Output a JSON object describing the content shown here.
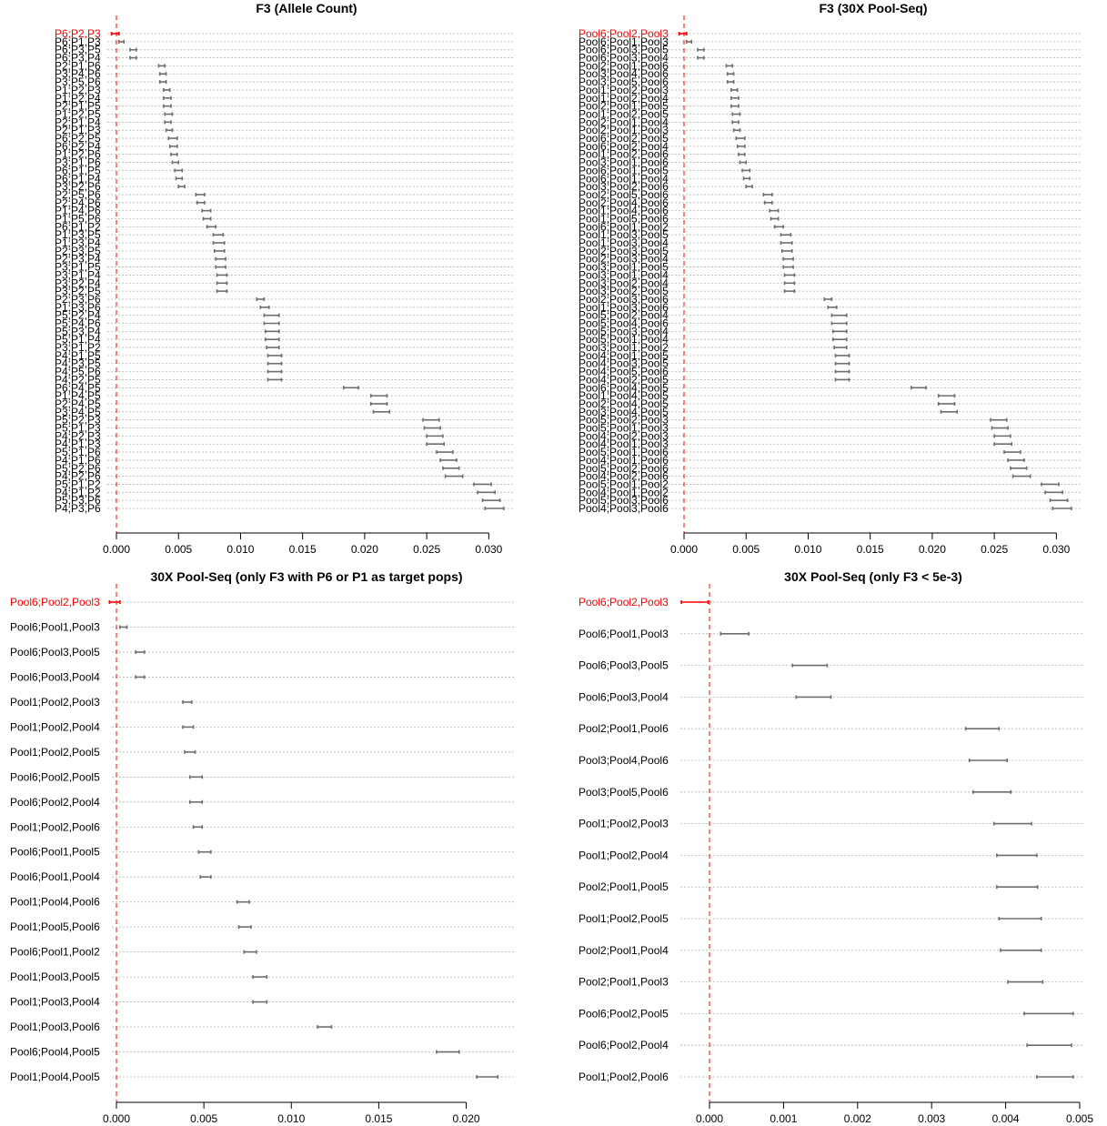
{
  "colors": {
    "highlight": "#ff0000",
    "bar": "#6e6e6e",
    "grid": "#b4b4b4"
  },
  "chart_data": [
    {
      "type": "range",
      "title": "F3 (Allele Count)",
      "xlim": [
        0,
        0.031
      ],
      "xticks": [
        "0.000",
        "0.005",
        "0.010",
        "0.015",
        "0.020",
        "0.025",
        "0.030"
      ],
      "grid": true,
      "highlight_index": 0,
      "rows": [
        {
          "label": "P6;P2,P3",
          "lo": -0.0004,
          "hi": 0.0002
        },
        {
          "label": "P6;P1,P3",
          "lo": 0.0002,
          "hi": 0.0006
        },
        {
          "label": "P6;P3,P5",
          "lo": 0.0011,
          "hi": 0.0016
        },
        {
          "label": "P6;P3,P4",
          "lo": 0.0011,
          "hi": 0.0016
        },
        {
          "label": "P2;P1,P6",
          "lo": 0.0034,
          "hi": 0.0039
        },
        {
          "label": "P3;P4,P6",
          "lo": 0.0035,
          "hi": 0.004
        },
        {
          "label": "P3;P5,P6",
          "lo": 0.0035,
          "hi": 0.004
        },
        {
          "label": "P1;P2,P3",
          "lo": 0.0038,
          "hi": 0.0043
        },
        {
          "label": "P1;P2,P4",
          "lo": 0.0038,
          "hi": 0.0044
        },
        {
          "label": "P2;P1,P5",
          "lo": 0.0038,
          "hi": 0.0044
        },
        {
          "label": "P1;P2,P5",
          "lo": 0.0039,
          "hi": 0.0045
        },
        {
          "label": "P2;P1,P4",
          "lo": 0.0039,
          "hi": 0.0044
        },
        {
          "label": "P2;P1,P3",
          "lo": 0.004,
          "hi": 0.0045
        },
        {
          "label": "P6;P2,P5",
          "lo": 0.0042,
          "hi": 0.0049
        },
        {
          "label": "P6;P2,P4",
          "lo": 0.0043,
          "hi": 0.0049
        },
        {
          "label": "P1;P2,P6",
          "lo": 0.0044,
          "hi": 0.0049
        },
        {
          "label": "P3;P1,P6",
          "lo": 0.0045,
          "hi": 0.005
        },
        {
          "label": "P6;P1,P5",
          "lo": 0.0047,
          "hi": 0.0053
        },
        {
          "label": "P6;P1,P4",
          "lo": 0.0048,
          "hi": 0.0053
        },
        {
          "label": "P3;P2,P6",
          "lo": 0.005,
          "hi": 0.0055
        },
        {
          "label": "P2;P5,P6",
          "lo": 0.0064,
          "hi": 0.0071
        },
        {
          "label": "P2;P4,P6",
          "lo": 0.0065,
          "hi": 0.0071
        },
        {
          "label": "P1;P4,P6",
          "lo": 0.0069,
          "hi": 0.0076
        },
        {
          "label": "P1;P5,P6",
          "lo": 0.007,
          "hi": 0.0076
        },
        {
          "label": "P6;P1,P2",
          "lo": 0.0073,
          "hi": 0.008
        },
        {
          "label": "P1;P3,P5",
          "lo": 0.0078,
          "hi": 0.0086
        },
        {
          "label": "P1;P3,P4",
          "lo": 0.0078,
          "hi": 0.0087
        },
        {
          "label": "P2;P3,P5",
          "lo": 0.0079,
          "hi": 0.0087
        },
        {
          "label": "P2;P3,P4",
          "lo": 0.008,
          "hi": 0.0088
        },
        {
          "label": "P3;P1,P5",
          "lo": 0.008,
          "hi": 0.0088
        },
        {
          "label": "P3;P1,P4",
          "lo": 0.0081,
          "hi": 0.0089
        },
        {
          "label": "P3;P2,P4",
          "lo": 0.0081,
          "hi": 0.0089
        },
        {
          "label": "P3;P2,P5",
          "lo": 0.0081,
          "hi": 0.0089
        },
        {
          "label": "P2;P3,P6",
          "lo": 0.0113,
          "hi": 0.0119
        },
        {
          "label": "P1;P3,P6",
          "lo": 0.0116,
          "hi": 0.0123
        },
        {
          "label": "P5;P2,P4",
          "lo": 0.0119,
          "hi": 0.0131
        },
        {
          "label": "P5;P4,P6",
          "lo": 0.0119,
          "hi": 0.0131
        },
        {
          "label": "P5;P3,P4",
          "lo": 0.012,
          "hi": 0.0131
        },
        {
          "label": "P5;P1,P4",
          "lo": 0.012,
          "hi": 0.0131
        },
        {
          "label": "P3;P1,P2",
          "lo": 0.0121,
          "hi": 0.0131
        },
        {
          "label": "P4;P1,P5",
          "lo": 0.0122,
          "hi": 0.0133
        },
        {
          "label": "P4;P3,P5",
          "lo": 0.0122,
          "hi": 0.0133
        },
        {
          "label": "P4;P5,P6",
          "lo": 0.0122,
          "hi": 0.0133
        },
        {
          "label": "P4;P2,P5",
          "lo": 0.0122,
          "hi": 0.0133
        },
        {
          "label": "P6;P4,P5",
          "lo": 0.0183,
          "hi": 0.0195
        },
        {
          "label": "P1;P4,P5",
          "lo": 0.0205,
          "hi": 0.0218
        },
        {
          "label": "P2;P4,P5",
          "lo": 0.0205,
          "hi": 0.0218
        },
        {
          "label": "P3;P4,P5",
          "lo": 0.0207,
          "hi": 0.022
        },
        {
          "label": "P5;P2,P3",
          "lo": 0.0247,
          "hi": 0.026
        },
        {
          "label": "P5;P1,P3",
          "lo": 0.0248,
          "hi": 0.0261
        },
        {
          "label": "P4;P2,P3",
          "lo": 0.025,
          "hi": 0.0263
        },
        {
          "label": "P4;P1,P3",
          "lo": 0.025,
          "hi": 0.0264
        },
        {
          "label": "P5;P1,P6",
          "lo": 0.0258,
          "hi": 0.0271
        },
        {
          "label": "P4;P1,P6",
          "lo": 0.0261,
          "hi": 0.0274
        },
        {
          "label": "P5;P2,P6",
          "lo": 0.0263,
          "hi": 0.0276
        },
        {
          "label": "P4;P2,P6",
          "lo": 0.0265,
          "hi": 0.0279
        },
        {
          "label": "P5;P1,P2",
          "lo": 0.0288,
          "hi": 0.0302
        },
        {
          "label": "P4;P1,P2",
          "lo": 0.0291,
          "hi": 0.0305
        },
        {
          "label": "P5;P3,P6",
          "lo": 0.0295,
          "hi": 0.0309
        },
        {
          "label": "P4;P3,P6",
          "lo": 0.0297,
          "hi": 0.0312
        }
      ]
    },
    {
      "type": "range",
      "title": "F3 (30X Pool-Seq)",
      "xlim": [
        0,
        0.031
      ],
      "xticks": [
        "0.000",
        "0.005",
        "0.010",
        "0.015",
        "0.020",
        "0.025",
        "0.030"
      ],
      "grid": true,
      "highlight_index": 0,
      "rows": [
        {
          "label": "Pool6;Pool2,Pool3",
          "lo": -0.0004,
          "hi": 0.0002
        },
        {
          "label": "Pool6;Pool1,Pool3",
          "lo": 0.0002,
          "hi": 0.0006
        },
        {
          "label": "Pool6;Pool3,Pool5",
          "lo": 0.0011,
          "hi": 0.0016
        },
        {
          "label": "Pool6;Pool3,Pool4",
          "lo": 0.0011,
          "hi": 0.0016
        },
        {
          "label": "Pool2;Pool1,Pool6",
          "lo": 0.0034,
          "hi": 0.0039
        },
        {
          "label": "Pool3;Pool4,Pool6",
          "lo": 0.0035,
          "hi": 0.004
        },
        {
          "label": "Pool3;Pool5,Pool6",
          "lo": 0.0035,
          "hi": 0.004
        },
        {
          "label": "Pool1;Pool2,Pool3",
          "lo": 0.0038,
          "hi": 0.0043
        },
        {
          "label": "Pool1;Pool2,Pool4",
          "lo": 0.0038,
          "hi": 0.0044
        },
        {
          "label": "Pool2;Pool1,Pool5",
          "lo": 0.0038,
          "hi": 0.0044
        },
        {
          "label": "Pool1;Pool2,Pool5",
          "lo": 0.0039,
          "hi": 0.0045
        },
        {
          "label": "Pool2;Pool1,Pool4",
          "lo": 0.0039,
          "hi": 0.0044
        },
        {
          "label": "Pool2;Pool1,Pool3",
          "lo": 0.004,
          "hi": 0.0045
        },
        {
          "label": "Pool6;Pool2,Pool5",
          "lo": 0.0042,
          "hi": 0.0049
        },
        {
          "label": "Pool6;Pool2,Pool4",
          "lo": 0.0043,
          "hi": 0.0049
        },
        {
          "label": "Pool1;Pool2,Pool6",
          "lo": 0.0044,
          "hi": 0.0049
        },
        {
          "label": "Pool3;Pool1,Pool6",
          "lo": 0.0045,
          "hi": 0.005
        },
        {
          "label": "Pool6;Pool1,Pool5",
          "lo": 0.0047,
          "hi": 0.0053
        },
        {
          "label": "Pool6;Pool1,Pool4",
          "lo": 0.0048,
          "hi": 0.0053
        },
        {
          "label": "Pool3;Pool2,Pool6",
          "lo": 0.005,
          "hi": 0.0055
        },
        {
          "label": "Pool2;Pool5,Pool6",
          "lo": 0.0064,
          "hi": 0.0071
        },
        {
          "label": "Pool2;Pool4,Pool6",
          "lo": 0.0065,
          "hi": 0.0071
        },
        {
          "label": "Pool1;Pool4,Pool6",
          "lo": 0.0069,
          "hi": 0.0076
        },
        {
          "label": "Pool1;Pool5,Pool6",
          "lo": 0.007,
          "hi": 0.0076
        },
        {
          "label": "Pool6;Pool1,Pool2",
          "lo": 0.0073,
          "hi": 0.008
        },
        {
          "label": "Pool1;Pool3,Pool5",
          "lo": 0.0078,
          "hi": 0.0086
        },
        {
          "label": "Pool1;Pool3,Pool4",
          "lo": 0.0078,
          "hi": 0.0087
        },
        {
          "label": "Pool2;Pool3,Pool5",
          "lo": 0.0079,
          "hi": 0.0087
        },
        {
          "label": "Pool2;Pool3,Pool4",
          "lo": 0.008,
          "hi": 0.0088
        },
        {
          "label": "Pool3;Pool1,Pool5",
          "lo": 0.008,
          "hi": 0.0088
        },
        {
          "label": "Pool3;Pool1,Pool4",
          "lo": 0.0081,
          "hi": 0.0089
        },
        {
          "label": "Pool3;Pool2,Pool4",
          "lo": 0.0081,
          "hi": 0.0089
        },
        {
          "label": "Pool3;Pool2,Pool5",
          "lo": 0.0081,
          "hi": 0.0089
        },
        {
          "label": "Pool2;Pool3,Pool6",
          "lo": 0.0113,
          "hi": 0.0119
        },
        {
          "label": "Pool1;Pool3,Pool6",
          "lo": 0.0116,
          "hi": 0.0123
        },
        {
          "label": "Pool5;Pool2,Pool4",
          "lo": 0.0119,
          "hi": 0.0131
        },
        {
          "label": "Pool5;Pool4,Pool6",
          "lo": 0.0119,
          "hi": 0.0131
        },
        {
          "label": "Pool5;Pool3,Pool4",
          "lo": 0.012,
          "hi": 0.0131
        },
        {
          "label": "Pool5;Pool1,Pool4",
          "lo": 0.012,
          "hi": 0.0131
        },
        {
          "label": "Pool3;Pool1,Pool2",
          "lo": 0.0121,
          "hi": 0.0131
        },
        {
          "label": "Pool4;Pool1,Pool5",
          "lo": 0.0122,
          "hi": 0.0133
        },
        {
          "label": "Pool4;Pool3,Pool5",
          "lo": 0.0122,
          "hi": 0.0133
        },
        {
          "label": "Pool4;Pool5,Pool6",
          "lo": 0.0122,
          "hi": 0.0133
        },
        {
          "label": "Pool4;Pool2,Pool5",
          "lo": 0.0122,
          "hi": 0.0133
        },
        {
          "label": "Pool6;Pool4,Pool5",
          "lo": 0.0183,
          "hi": 0.0195
        },
        {
          "label": "Pool1;Pool4,Pool5",
          "lo": 0.0205,
          "hi": 0.0218
        },
        {
          "label": "Pool2;Pool4,Pool5",
          "lo": 0.0205,
          "hi": 0.0218
        },
        {
          "label": "Pool3;Pool4,Pool5",
          "lo": 0.0207,
          "hi": 0.022
        },
        {
          "label": "Pool5;Pool2,Pool3",
          "lo": 0.0247,
          "hi": 0.026
        },
        {
          "label": "Pool5;Pool1,Pool3",
          "lo": 0.0248,
          "hi": 0.0261
        },
        {
          "label": "Pool4;Pool2,Pool3",
          "lo": 0.025,
          "hi": 0.0263
        },
        {
          "label": "Pool4;Pool1,Pool3",
          "lo": 0.025,
          "hi": 0.0264
        },
        {
          "label": "Pool5;Pool1,Pool6",
          "lo": 0.0258,
          "hi": 0.0271
        },
        {
          "label": "Pool4;Pool1,Pool6",
          "lo": 0.0261,
          "hi": 0.0274
        },
        {
          "label": "Pool5;Pool2,Pool6",
          "lo": 0.0263,
          "hi": 0.0276
        },
        {
          "label": "Pool4;Pool2,Pool6",
          "lo": 0.0265,
          "hi": 0.0279
        },
        {
          "label": "Pool5;Pool1,Pool2",
          "lo": 0.0288,
          "hi": 0.0302
        },
        {
          "label": "Pool4;Pool1,Pool2",
          "lo": 0.0291,
          "hi": 0.0305
        },
        {
          "label": "Pool5;Pool3,Pool6",
          "lo": 0.0295,
          "hi": 0.0309
        },
        {
          "label": "Pool4;Pool3,Pool6",
          "lo": 0.0297,
          "hi": 0.0312
        }
      ]
    },
    {
      "type": "range",
      "title": "30X Pool-Seq (only F3 with P6 or P1 as target pops)",
      "xlim": [
        0,
        0.022
      ],
      "xticks": [
        "0.000",
        "0.005",
        "0.010",
        "0.015",
        "0.020"
      ],
      "grid": true,
      "highlight_index": 0,
      "rows": [
        {
          "label": "Pool6;Pool2,Pool3",
          "lo": -0.0004,
          "hi": 0.0002
        },
        {
          "label": "Pool6;Pool1,Pool3",
          "lo": 0.0002,
          "hi": 0.0006
        },
        {
          "label": "Pool6;Pool3,Pool5",
          "lo": 0.0011,
          "hi": 0.0016
        },
        {
          "label": "Pool6;Pool3,Pool4",
          "lo": 0.0011,
          "hi": 0.0016
        },
        {
          "label": "Pool1;Pool2,Pool3",
          "lo": 0.0038,
          "hi": 0.0043
        },
        {
          "label": "Pool1;Pool2,Pool4",
          "lo": 0.0038,
          "hi": 0.0044
        },
        {
          "label": "Pool1;Pool2,Pool5",
          "lo": 0.0039,
          "hi": 0.0045
        },
        {
          "label": "Pool6;Pool2,Pool5",
          "lo": 0.0042,
          "hi": 0.0049
        },
        {
          "label": "Pool6;Pool2,Pool4",
          "lo": 0.0042,
          "hi": 0.0049
        },
        {
          "label": "Pool1;Pool2,Pool6",
          "lo": 0.0044,
          "hi": 0.0049
        },
        {
          "label": "Pool6;Pool1,Pool5",
          "lo": 0.0047,
          "hi": 0.0054
        },
        {
          "label": "Pool6;Pool1,Pool4",
          "lo": 0.0048,
          "hi": 0.0054
        },
        {
          "label": "Pool1;Pool4,Pool6",
          "lo": 0.0069,
          "hi": 0.0076
        },
        {
          "label": "Pool1;Pool5,Pool6",
          "lo": 0.007,
          "hi": 0.0077
        },
        {
          "label": "Pool6;Pool1,Pool2",
          "lo": 0.0073,
          "hi": 0.008
        },
        {
          "label": "Pool1;Pool3,Pool5",
          "lo": 0.0078,
          "hi": 0.0086
        },
        {
          "label": "Pool1;Pool3,Pool4",
          "lo": 0.0078,
          "hi": 0.0086
        },
        {
          "label": "Pool1;Pool3,Pool6",
          "lo": 0.0115,
          "hi": 0.0123
        },
        {
          "label": "Pool6;Pool4,Pool5",
          "lo": 0.0183,
          "hi": 0.0196
        },
        {
          "label": "Pool1;Pool4,Pool5",
          "lo": 0.0206,
          "hi": 0.0218
        }
      ]
    },
    {
      "type": "range",
      "title": "30X Pool-Seq (only F3 < 5e-3)",
      "xlim": [
        0,
        0.005
      ],
      "xticks": [
        "0.000",
        "0.001",
        "0.002",
        "0.003",
        "0.004",
        "0.005"
      ],
      "grid": true,
      "highlight_index": 0,
      "rows": [
        {
          "label": "Pool6;Pool2,Pool3",
          "lo": -0.00038,
          "hi": -2e-05
        },
        {
          "label": "Pool6;Pool1,Pool3",
          "lo": 0.00015,
          "hi": 0.00053
        },
        {
          "label": "Pool6;Pool3,Pool5",
          "lo": 0.00112,
          "hi": 0.00159
        },
        {
          "label": "Pool6;Pool3,Pool4",
          "lo": 0.00117,
          "hi": 0.00164
        },
        {
          "label": "Pool2;Pool1,Pool6",
          "lo": 0.00346,
          "hi": 0.00391
        },
        {
          "label": "Pool3;Pool4,Pool6",
          "lo": 0.00351,
          "hi": 0.00402
        },
        {
          "label": "Pool3;Pool5,Pool6",
          "lo": 0.00356,
          "hi": 0.00407
        },
        {
          "label": "Pool1;Pool2,Pool3",
          "lo": 0.00384,
          "hi": 0.00435
        },
        {
          "label": "Pool1;Pool2,Pool4",
          "lo": 0.00388,
          "hi": 0.00442
        },
        {
          "label": "Pool2;Pool1,Pool5",
          "lo": 0.00388,
          "hi": 0.00443
        },
        {
          "label": "Pool1;Pool2,Pool5",
          "lo": 0.00391,
          "hi": 0.00448
        },
        {
          "label": "Pool2;Pool1,Pool4",
          "lo": 0.00393,
          "hi": 0.00448
        },
        {
          "label": "Pool2;Pool1,Pool3",
          "lo": 0.00403,
          "hi": 0.0045
        },
        {
          "label": "Pool6;Pool2,Pool5",
          "lo": 0.00425,
          "hi": 0.00491
        },
        {
          "label": "Pool6;Pool2,Pool4",
          "lo": 0.00429,
          "hi": 0.00489
        },
        {
          "label": "Pool1;Pool2,Pool6",
          "lo": 0.00442,
          "hi": 0.00491
        }
      ]
    }
  ]
}
